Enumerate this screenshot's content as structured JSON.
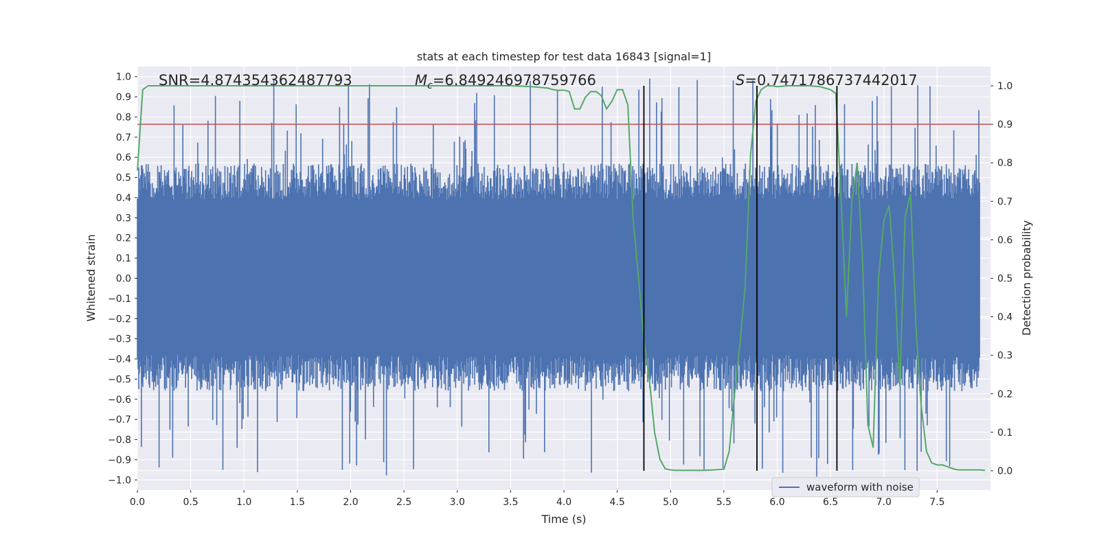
{
  "chart_data": {
    "type": "line",
    "title": "stats at each timestep for test data 16843 [signal=1]",
    "xlabel": "Time (s)",
    "ylabel": "Whitened strain",
    "y2label": "Detection probability",
    "xlim": [
      0.0,
      8.0
    ],
    "ylim": [
      -1.05,
      1.05
    ],
    "y2lim": [
      -0.05,
      1.05
    ],
    "x_ticks": [
      0.0,
      0.5,
      1.0,
      1.5,
      2.0,
      2.5,
      3.0,
      3.5,
      4.0,
      4.5,
      5.0,
      5.5,
      6.0,
      6.5,
      7.0,
      7.5
    ],
    "x_tick_labels": [
      "0.0",
      "0.5",
      "1.0",
      "1.5",
      "2.0",
      "2.5",
      "3.0",
      "3.5",
      "4.0",
      "4.5",
      "5.0",
      "5.5",
      "6.0",
      "6.5",
      "7.0",
      "7.5"
    ],
    "y_ticks": [
      1.0,
      0.9,
      0.8,
      0.7,
      0.6,
      0.5,
      0.4,
      0.3,
      0.2,
      0.1,
      0.0,
      -0.1,
      -0.2,
      -0.3,
      -0.4,
      -0.5,
      -0.6,
      -0.7,
      -0.8,
      -0.9,
      -1.0
    ],
    "y_tick_labels": [
      "1.0",
      "0.9",
      "0.8",
      "0.7",
      "0.6",
      "0.5",
      "0.4",
      "0.3",
      "0.2",
      "0.1",
      "0.0",
      "−0.1",
      "−0.2",
      "−0.3",
      "−0.4",
      "−0.5",
      "−0.6",
      "−0.7",
      "−0.8",
      "−0.9",
      "−1.0"
    ],
    "y2_ticks": [
      1.0,
      0.9,
      0.8,
      0.7,
      0.6,
      0.5,
      0.4,
      0.3,
      0.2,
      0.1,
      0.0
    ],
    "y2_tick_labels": [
      "1.0",
      "0.9",
      "0.8",
      "0.7",
      "0.6",
      "0.5",
      "0.4",
      "0.3",
      "0.2",
      "0.1",
      "0.0"
    ],
    "grid": true,
    "legend": {
      "entries": [
        "waveform with noise"
      ],
      "location": "lower-right"
    },
    "annotations": {
      "snr": "SNR=4.874354362487793",
      "mc_symbol": "M",
      "mc_sub": "c",
      "mc_value": "=6.849246978759766",
      "s_symbol": "S",
      "s_value": "=0.7471786737442017"
    },
    "threshold_line": {
      "axis": "y2",
      "value": 0.9
    },
    "vertical_lines_x": [
      4.75,
      5.81,
      6.56
    ],
    "waveform": {
      "name": "waveform with noise",
      "samples": 4096,
      "envelope_mean_upper": 0.48,
      "envelope_mean_lower": -0.47,
      "spike_extent_min": 0.84,
      "spike_extent_max": 0.99
    },
    "series": [
      {
        "name": "detection probability",
        "axis": "y2",
        "x": [
          0.0,
          0.05,
          0.1,
          0.15,
          0.2,
          0.5,
          1.0,
          1.5,
          2.0,
          2.5,
          3.0,
          3.5,
          3.7,
          3.85,
          3.9,
          3.95,
          4.0,
          4.05,
          4.1,
          4.15,
          4.2,
          4.25,
          4.3,
          4.35,
          4.4,
          4.45,
          4.5,
          4.55,
          4.6,
          4.65,
          4.7,
          4.75,
          4.8,
          4.85,
          4.9,
          4.95,
          5.0,
          5.05,
          5.1,
          5.2,
          5.3,
          5.4,
          5.5,
          5.55,
          5.6,
          5.65,
          5.7,
          5.75,
          5.8,
          5.85,
          5.9,
          5.95,
          6.0,
          6.1,
          6.2,
          6.3,
          6.4,
          6.5,
          6.55,
          6.6,
          6.65,
          6.7,
          6.75,
          6.8,
          6.85,
          6.9,
          6.95,
          7.0,
          7.05,
          7.1,
          7.15,
          7.2,
          7.25,
          7.3,
          7.35,
          7.4,
          7.45,
          7.5,
          7.55,
          7.6,
          7.65,
          7.7,
          7.8,
          7.9,
          7.95
        ],
        "values": [
          0.78,
          0.99,
          1.0,
          1.0,
          1.0,
          1.0,
          1.0,
          1.0,
          1.0,
          1.0,
          1.0,
          1.0,
          0.998,
          0.994,
          0.99,
          0.988,
          0.989,
          0.985,
          0.94,
          0.94,
          0.97,
          0.985,
          0.985,
          0.975,
          0.94,
          0.96,
          0.99,
          0.99,
          0.95,
          0.65,
          0.5,
          0.34,
          0.24,
          0.1,
          0.03,
          0.005,
          0.002,
          0.001,
          0.001,
          0.001,
          0.001,
          0.002,
          0.004,
          0.05,
          0.2,
          0.33,
          0.48,
          0.82,
          0.96,
          0.99,
          1.0,
          1.0,
          0.998,
          1.0,
          1.0,
          1.0,
          0.998,
          0.99,
          0.98,
          0.7,
          0.4,
          0.7,
          0.8,
          0.55,
          0.12,
          0.06,
          0.5,
          0.65,
          0.69,
          0.5,
          0.22,
          0.66,
          0.72,
          0.38,
          0.17,
          0.05,
          0.02,
          0.015,
          0.015,
          0.01,
          0.005,
          0.002,
          0.002,
          0.002,
          0.001
        ]
      }
    ]
  }
}
